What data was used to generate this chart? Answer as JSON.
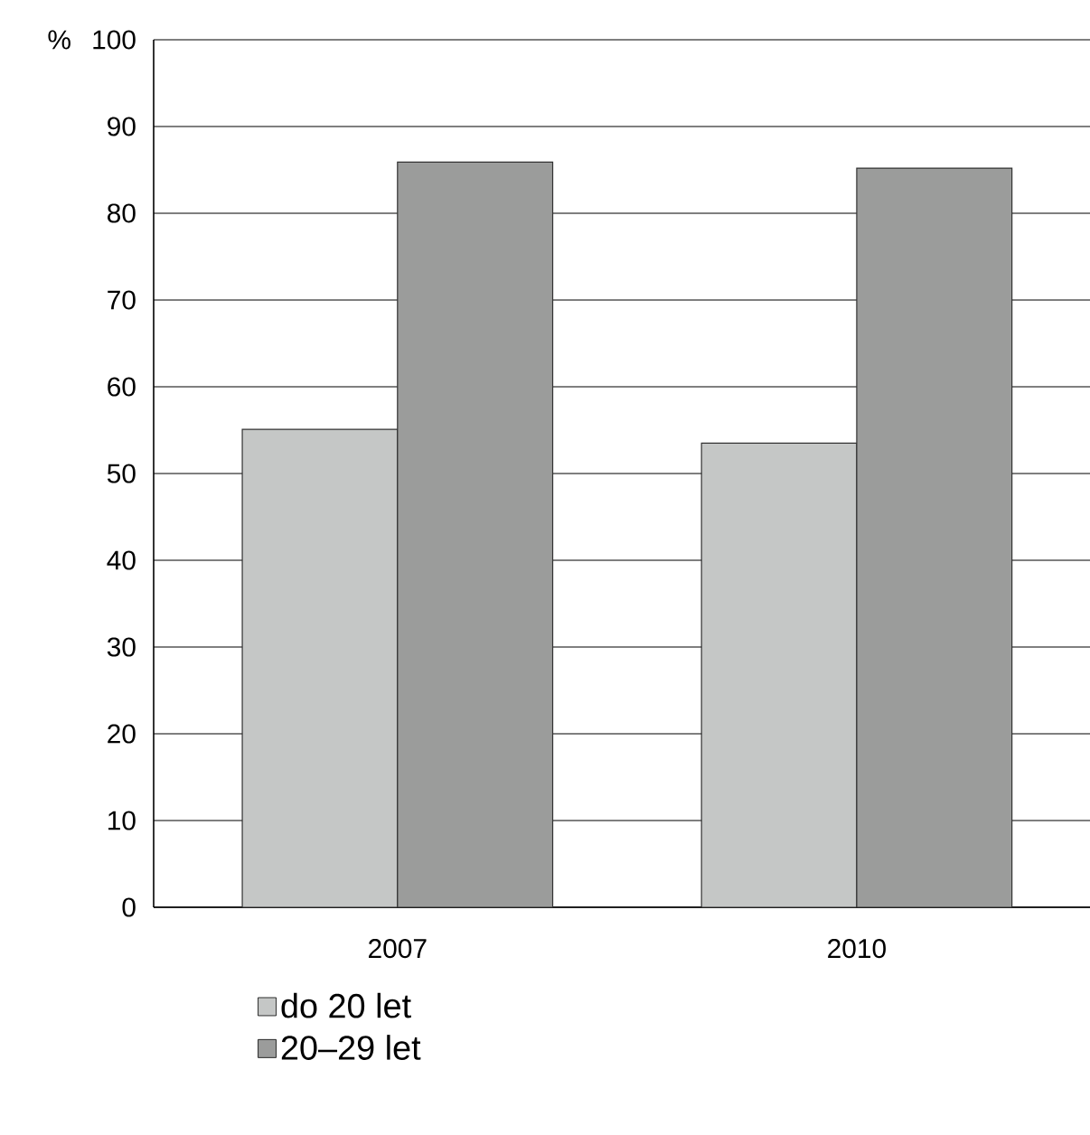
{
  "chart_data": {
    "type": "bar",
    "ylabel": "%",
    "categories": [
      "2007",
      "2010"
    ],
    "series": [
      {
        "name": "do 20 let",
        "color": "#c5c7c6",
        "values": [
          55.1,
          53.5
        ]
      },
      {
        "name": "20–29 let",
        "color": "#9b9c9b",
        "values": [
          85.9,
          85.2
        ]
      }
    ],
    "ylim": [
      0,
      100
    ],
    "yticks": [
      0,
      10,
      20,
      30,
      40,
      50,
      60,
      70,
      80,
      90,
      100
    ],
    "grid": "y",
    "legend": "bottom"
  }
}
